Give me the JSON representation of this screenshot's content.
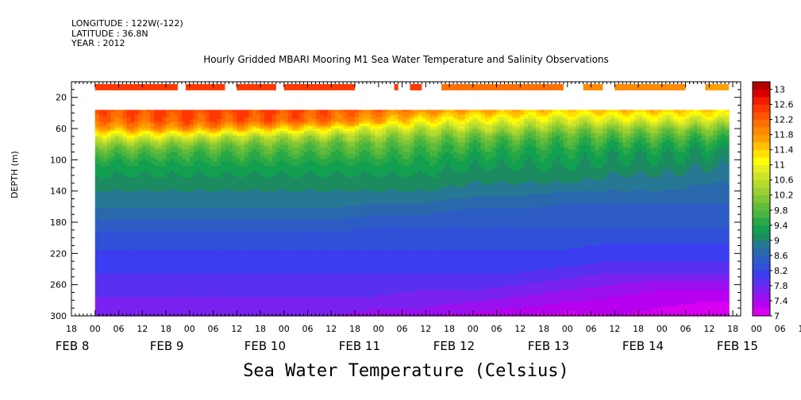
{
  "header": {
    "longitude": "LONGITUDE : 122W(-122)",
    "latitude": "LATITUDE : 36.8N",
    "year": "YEAR : 2012"
  },
  "chart_data": {
    "type": "heatmap",
    "title": "Hourly Gridded MBARI Mooring M1 Sea Water Temperature and Salinity Observations",
    "ylabel": "DEPTH (m)",
    "footer_label": "Sea Water Temperature (Celsius)",
    "y_range": [
      0,
      300
    ],
    "y_ticks": [
      20,
      60,
      100,
      140,
      180,
      220,
      260,
      300
    ],
    "y_tick_labels": [
      "20",
      "60",
      "100",
      "140",
      "180",
      "220",
      "260",
      "300"
    ],
    "x_hour_ticks": [
      "18",
      "00",
      "06",
      "12",
      "18",
      "00",
      "06",
      "12",
      "18",
      "00",
      "06",
      "12",
      "18",
      "00",
      "06",
      "12",
      "18",
      "00",
      "06",
      "12",
      "18",
      "00",
      "06",
      "12",
      "18",
      "00",
      "06",
      "12",
      "18",
      "00",
      "06",
      "12"
    ],
    "x_date_labels": [
      "FEB 8",
      "FEB 9",
      "FEB 10",
      "FEB 11",
      "FEB 12",
      "FEB 13",
      "FEB 14",
      "FEB 15"
    ],
    "colorbar_levels": [
      7,
      7.2,
      7.4,
      7.6,
      7.8,
      8,
      8.2,
      8.4,
      8.6,
      8.8,
      9,
      9.2,
      9.4,
      9.6,
      9.8,
      10,
      10.2,
      10.4,
      10.6,
      10.8,
      11,
      11.2,
      11.4,
      11.6,
      11.8,
      12,
      12.2,
      12.4,
      12.6,
      12.8,
      13,
      13.2
    ],
    "colorbar_labels": [
      "13",
      "12.6",
      "12.2",
      "11.8",
      "11.4",
      "11",
      "10.6",
      "10.2",
      "9.8",
      "9.4",
      "9",
      "8.6",
      "8.2",
      "7.8",
      "7.4",
      "7"
    ],
    "colors": {
      "c7.0": "#d800f0",
      "c7.2": "#b800f0",
      "c7.4": "#9a10ee",
      "c7.6": "#7a22f0",
      "c7.8": "#5a30f0",
      "c8.0": "#3c3cf0",
      "c8.2": "#3050d8",
      "c8.4": "#2c5cc4",
      "c8.6": "#2a68ae",
      "c8.8": "#267894",
      "c9.0": "#1c8c60",
      "c9.2": "#12a050",
      "c9.4": "#28a846",
      "c9.6": "#48b440",
      "c9.8": "#62bc3a",
      "c10.0": "#80c636",
      "c10.2": "#9cd030",
      "c10.4": "#b4da2c",
      "c10.6": "#cce428",
      "c10.8": "#e4ee22",
      "c11.0": "#ffff00",
      "c11.2": "#ffe000",
      "c11.4": "#ffc000",
      "c11.6": "#ffa000",
      "c11.8": "#ff8a00",
      "c12.0": "#ff7000",
      "c12.2": "#ff5400",
      "c12.4": "#ff3800",
      "c12.6": "#f01c00",
      "c12.8": "#d80000",
      "c13.0": "#b00000"
    },
    "surface_segments": [
      {
        "start_hour": 0,
        "end_hour": 21,
        "value": 12.4
      },
      {
        "start_hour": 23,
        "end_hour": 33,
        "value": 12.4
      },
      {
        "start_hour": 36,
        "end_hour": 46,
        "value": 12.4
      },
      {
        "start_hour": 48,
        "end_hour": 66,
        "value": 12.4
      },
      {
        "start_hour": 76,
        "end_hour": 77,
        "value": 12.4
      },
      {
        "start_hour": 80,
        "end_hour": 83,
        "value": 12.4
      },
      {
        "start_hour": 88,
        "end_hour": 119,
        "value": 12.0
      },
      {
        "start_hour": 124,
        "end_hour": 129,
        "value": 11.8
      },
      {
        "start_hour": 132,
        "end_hour": 150,
        "value": 11.8
      },
      {
        "start_hour": 155,
        "end_hour": 161,
        "value": 11.6
      }
    ],
    "depth_levels": [
      36,
      50,
      60,
      70,
      80,
      90,
      100,
      110,
      120,
      130,
      140,
      155,
      170,
      185,
      200,
      215,
      230,
      245,
      260,
      275,
      290,
      300
    ],
    "time_hours": [
      0,
      12,
      24,
      36,
      48,
      60,
      72,
      84,
      96,
      108,
      120,
      132,
      144,
      156,
      161
    ],
    "temperature_profiles": [
      [
        12.3,
        12.1,
        11.6,
        10.8,
        10.2,
        9.8,
        9.5,
        9.3,
        9.2,
        9.1,
        9.0,
        8.9,
        8.7,
        8.5,
        8.3,
        8.2,
        8.1,
        8.0,
        7.9,
        7.8,
        7.7,
        7.6
      ],
      [
        12.4,
        12.2,
        11.8,
        10.9,
        10.2,
        9.8,
        9.5,
        9.3,
        9.2,
        9.1,
        9.0,
        8.9,
        8.7,
        8.5,
        8.3,
        8.2,
        8.1,
        8.0,
        7.9,
        7.8,
        7.7,
        7.6
      ],
      [
        12.4,
        12.3,
        11.8,
        10.8,
        10.1,
        9.7,
        9.5,
        9.3,
        9.2,
        9.1,
        9.0,
        8.9,
        8.7,
        8.5,
        8.3,
        8.2,
        8.1,
        8.0,
        7.9,
        7.8,
        7.7,
        7.6
      ],
      [
        12.4,
        12.3,
        11.6,
        10.6,
        10.0,
        9.7,
        9.5,
        9.3,
        9.2,
        9.1,
        9.0,
        8.9,
        8.7,
        8.5,
        8.3,
        8.2,
        8.1,
        8.0,
        7.9,
        7.8,
        7.7,
        7.6
      ],
      [
        12.4,
        12.2,
        11.4,
        10.5,
        10.0,
        9.7,
        9.5,
        9.3,
        9.2,
        9.1,
        9.0,
        8.9,
        8.7,
        8.5,
        8.3,
        8.2,
        8.1,
        8.0,
        7.9,
        7.8,
        7.7,
        7.6
      ],
      [
        12.3,
        12.1,
        11.2,
        10.4,
        9.9,
        9.7,
        9.5,
        9.3,
        9.2,
        9.1,
        9.0,
        8.9,
        8.7,
        8.5,
        8.3,
        8.2,
        8.1,
        8.0,
        7.9,
        7.8,
        7.7,
        7.6
      ],
      [
        12.1,
        11.6,
        10.8,
        10.3,
        9.9,
        9.7,
        9.5,
        9.3,
        9.2,
        9.1,
        9.0,
        8.8,
        8.6,
        8.4,
        8.3,
        8.2,
        8.1,
        8.0,
        7.9,
        7.8,
        7.6,
        7.5
      ],
      [
        11.9,
        11.2,
        10.6,
        10.1,
        9.8,
        9.6,
        9.4,
        9.3,
        9.2,
        9.1,
        9.0,
        8.8,
        8.6,
        8.4,
        8.3,
        8.2,
        8.1,
        8.0,
        7.9,
        7.7,
        7.6,
        7.4
      ],
      [
        11.7,
        11.0,
        10.5,
        10.0,
        9.7,
        9.5,
        9.3,
        9.2,
        9.1,
        9.0,
        8.9,
        8.7,
        8.5,
        8.4,
        8.3,
        8.2,
        8.1,
        8.0,
        7.9,
        7.7,
        7.5,
        7.3
      ],
      [
        11.6,
        10.9,
        10.4,
        9.9,
        9.6,
        9.4,
        9.3,
        9.2,
        9.1,
        9.0,
        8.9,
        8.7,
        8.5,
        8.4,
        8.3,
        8.2,
        8.1,
        8.0,
        7.8,
        7.6,
        7.4,
        7.2
      ],
      [
        11.4,
        10.7,
        10.2,
        9.8,
        9.6,
        9.4,
        9.3,
        9.2,
        9.1,
        9.0,
        8.8,
        8.6,
        8.5,
        8.4,
        8.3,
        8.2,
        8.1,
        7.9,
        7.7,
        7.5,
        7.3,
        7.1
      ],
      [
        11.5,
        10.8,
        10.2,
        9.8,
        9.5,
        9.3,
        9.2,
        9.1,
        9.0,
        8.9,
        8.8,
        8.6,
        8.5,
        8.4,
        8.3,
        8.1,
        8.0,
        7.8,
        7.6,
        7.4,
        7.3,
        7.2
      ],
      [
        11.5,
        10.8,
        10.2,
        9.8,
        9.5,
        9.3,
        9.2,
        9.1,
        9.0,
        8.9,
        8.8,
        8.6,
        8.5,
        8.4,
        8.3,
        8.1,
        8.0,
        7.8,
        7.5,
        7.3,
        7.2,
        7.1
      ],
      [
        11.4,
        10.7,
        10.1,
        9.7,
        9.4,
        9.2,
        9.1,
        9.0,
        8.9,
        8.8,
        8.7,
        8.6,
        8.5,
        8.4,
        8.3,
        8.1,
        8.0,
        7.8,
        7.5,
        7.3,
        7.1,
        7.0
      ],
      [
        11.4,
        10.7,
        10.1,
        9.7,
        9.4,
        9.2,
        9.1,
        9.0,
        8.9,
        8.8,
        8.7,
        8.6,
        8.5,
        8.4,
        8.3,
        8.1,
        8.0,
        7.8,
        7.5,
        7.3,
        7.1,
        7.0
      ]
    ]
  }
}
